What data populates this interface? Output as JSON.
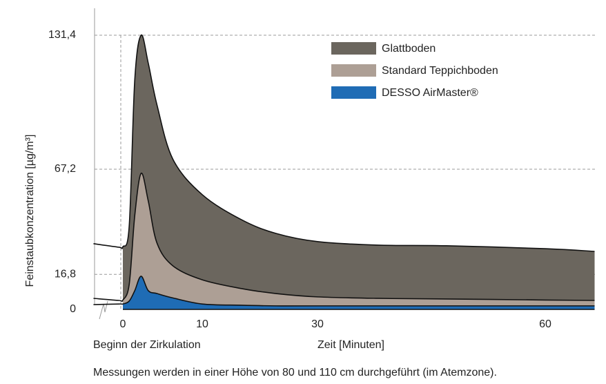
{
  "chart_data": {
    "type": "area",
    "y_label": "Feinstaubkonzentration [µg/m³]",
    "x_label": "Zeit [Minuten]",
    "x_start_label": "Beginn der Zirkulation",
    "footnote": "Messungen werden in einer Höhe von 80 und 110 cm durchgeführt (im Atemzone).",
    "x": [
      -3.7,
      -0.5,
      0,
      0.8,
      1.5,
      2.3,
      3.2,
      4.3,
      6.3,
      10,
      16.8,
      22.8,
      30,
      38,
      47,
      60,
      66.5
    ],
    "series": [
      {
        "name": "Glattboden",
        "color": "#6b665e",
        "values": [
          31.5,
          29.8,
          30,
          40,
          110,
          131.4,
          118,
          98,
          72,
          55,
          43,
          36.4,
          32.5,
          30.8,
          30.5,
          29.1,
          27.8
        ]
      },
      {
        "name": "Standard Teppichboden",
        "color": "#ad9f95",
        "values": [
          5.3,
          4.3,
          4.5,
          12,
          45,
          65.2,
          52,
          31.8,
          20.9,
          14.2,
          10,
          7.6,
          6,
          5.3,
          5,
          4.5,
          4.3
        ]
      },
      {
        "name": "DESSO AirMaster®",
        "color": "#1f6cb5",
        "values": [
          2.3,
          2.6,
          2.6,
          4,
          9,
          15.9,
          9,
          7.6,
          5.5,
          2.6,
          2,
          1.7,
          1.7,
          1.7,
          1.7,
          1.7,
          1.7
        ]
      }
    ],
    "xlim": [
      -3.7,
      66.5
    ],
    "xticks": [
      0,
      10,
      30,
      60
    ],
    "ylim": [
      0,
      131.4
    ],
    "yticks": [
      0,
      {
        "value": 16.8,
        "label": "16,8"
      },
      {
        "value": 67.2,
        "label": "67,2"
      },
      {
        "value": 131.4,
        "label": "131,4"
      }
    ],
    "grid": true
  }
}
